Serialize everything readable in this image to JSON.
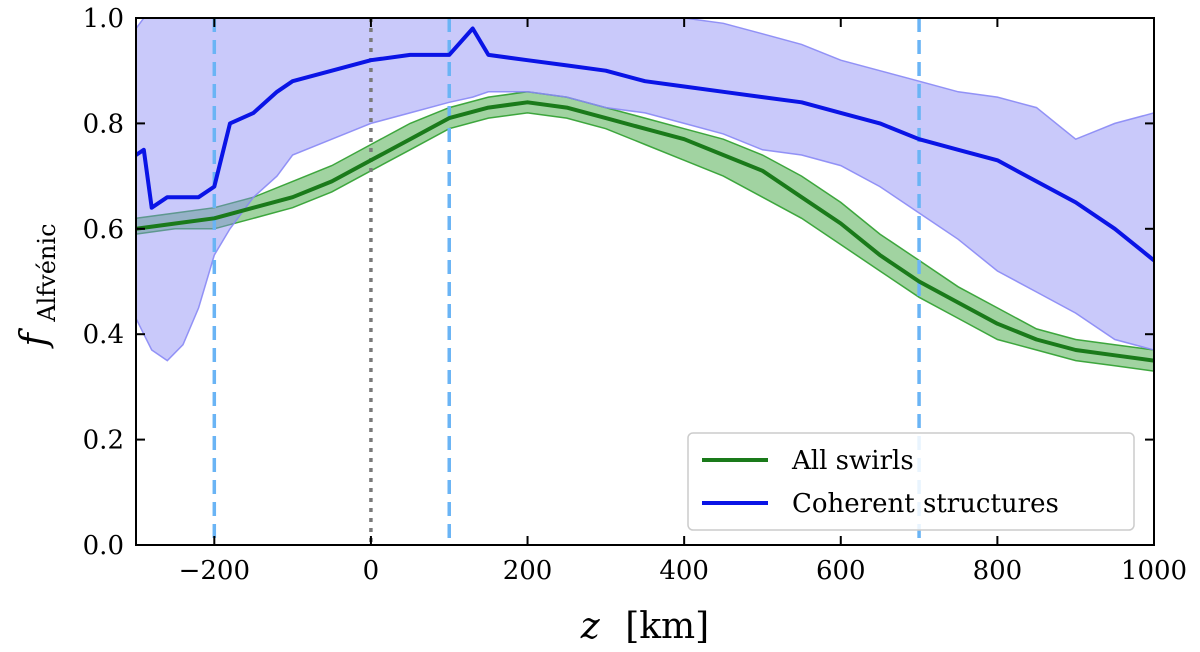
{
  "chart_data": {
    "type": "line",
    "xlabel": "z",
    "xlabel_unit": "[km]",
    "ylabel_base": "f",
    "ylabel_sub": "Alfvénic",
    "xlim": [
      -300,
      1000
    ],
    "ylim": [
      0.0,
      1.0
    ],
    "xticks": [
      -200,
      0,
      200,
      400,
      600,
      800,
      1000
    ],
    "xtick_labels": [
      "−200",
      "0",
      "200",
      "400",
      "600",
      "800",
      "1000"
    ],
    "yticks": [
      0.0,
      0.2,
      0.4,
      0.6,
      0.8,
      1.0
    ],
    "ytick_labels": [
      "0.0",
      "0.2",
      "0.4",
      "0.6",
      "0.8",
      "1.0"
    ],
    "grid": false,
    "legend_position": "lower-right",
    "vlines": [
      {
        "x": -200,
        "style": "dashed",
        "color": "#6ab4f5"
      },
      {
        "x": 0,
        "style": "dotted",
        "color": "#7a7a7a"
      },
      {
        "x": 100,
        "style": "dashed",
        "color": "#6ab4f5"
      },
      {
        "x": 700,
        "style": "dashed",
        "color": "#6ab4f5"
      }
    ],
    "series": [
      {
        "name": "All swirls",
        "color": "#1a7a1a",
        "band_color": "#2e9e2e",
        "x": [
          -300,
          -250,
          -200,
          -150,
          -100,
          -50,
          0,
          50,
          100,
          150,
          200,
          250,
          300,
          350,
          400,
          450,
          500,
          550,
          600,
          650,
          700,
          750,
          800,
          850,
          900,
          950,
          1000
        ],
        "mean": [
          0.6,
          0.61,
          0.62,
          0.64,
          0.66,
          0.69,
          0.73,
          0.77,
          0.81,
          0.83,
          0.84,
          0.83,
          0.81,
          0.79,
          0.77,
          0.74,
          0.71,
          0.66,
          0.61,
          0.55,
          0.5,
          0.46,
          0.42,
          0.39,
          0.37,
          0.36,
          0.35
        ],
        "lower": [
          0.59,
          0.6,
          0.6,
          0.62,
          0.64,
          0.67,
          0.71,
          0.75,
          0.79,
          0.81,
          0.82,
          0.81,
          0.79,
          0.76,
          0.73,
          0.7,
          0.66,
          0.62,
          0.57,
          0.52,
          0.47,
          0.43,
          0.39,
          0.37,
          0.35,
          0.34,
          0.33
        ],
        "upper": [
          0.62,
          0.63,
          0.64,
          0.66,
          0.69,
          0.72,
          0.76,
          0.8,
          0.83,
          0.85,
          0.86,
          0.85,
          0.83,
          0.81,
          0.79,
          0.77,
          0.74,
          0.7,
          0.65,
          0.59,
          0.54,
          0.49,
          0.45,
          0.41,
          0.39,
          0.38,
          0.37
        ]
      },
      {
        "name": "Coherent structures",
        "color": "#0a14e6",
        "band_color": "#8888f5",
        "x": [
          -300,
          -290,
          -280,
          -260,
          -240,
          -220,
          -200,
          -180,
          -150,
          -120,
          -100,
          -50,
          0,
          50,
          100,
          130,
          150,
          200,
          250,
          300,
          350,
          400,
          450,
          500,
          550,
          600,
          650,
          700,
          750,
          800,
          850,
          900,
          950,
          1000
        ],
        "mean": [
          0.74,
          0.75,
          0.64,
          0.66,
          0.66,
          0.66,
          0.68,
          0.8,
          0.82,
          0.86,
          0.88,
          0.9,
          0.92,
          0.93,
          0.93,
          0.98,
          0.93,
          0.92,
          0.91,
          0.9,
          0.88,
          0.87,
          0.86,
          0.85,
          0.84,
          0.82,
          0.8,
          0.77,
          0.75,
          0.73,
          0.69,
          0.65,
          0.6,
          0.54
        ],
        "lower": [
          0.43,
          0.4,
          0.37,
          0.35,
          0.38,
          0.45,
          0.55,
          0.6,
          0.66,
          0.7,
          0.74,
          0.77,
          0.8,
          0.82,
          0.84,
          0.85,
          0.86,
          0.86,
          0.85,
          0.83,
          0.82,
          0.8,
          0.78,
          0.75,
          0.74,
          0.72,
          0.68,
          0.63,
          0.58,
          0.52,
          0.48,
          0.44,
          0.39,
          0.37
        ],
        "upper": [
          0.98,
          1.0,
          1.0,
          1.0,
          1.0,
          1.0,
          1.0,
          1.0,
          1.0,
          1.0,
          1.0,
          1.0,
          1.0,
          1.0,
          1.0,
          1.0,
          1.0,
          1.0,
          1.0,
          1.0,
          1.0,
          1.0,
          0.99,
          0.97,
          0.95,
          0.92,
          0.9,
          0.88,
          0.86,
          0.85,
          0.83,
          0.77,
          0.8,
          0.82
        ]
      }
    ]
  }
}
